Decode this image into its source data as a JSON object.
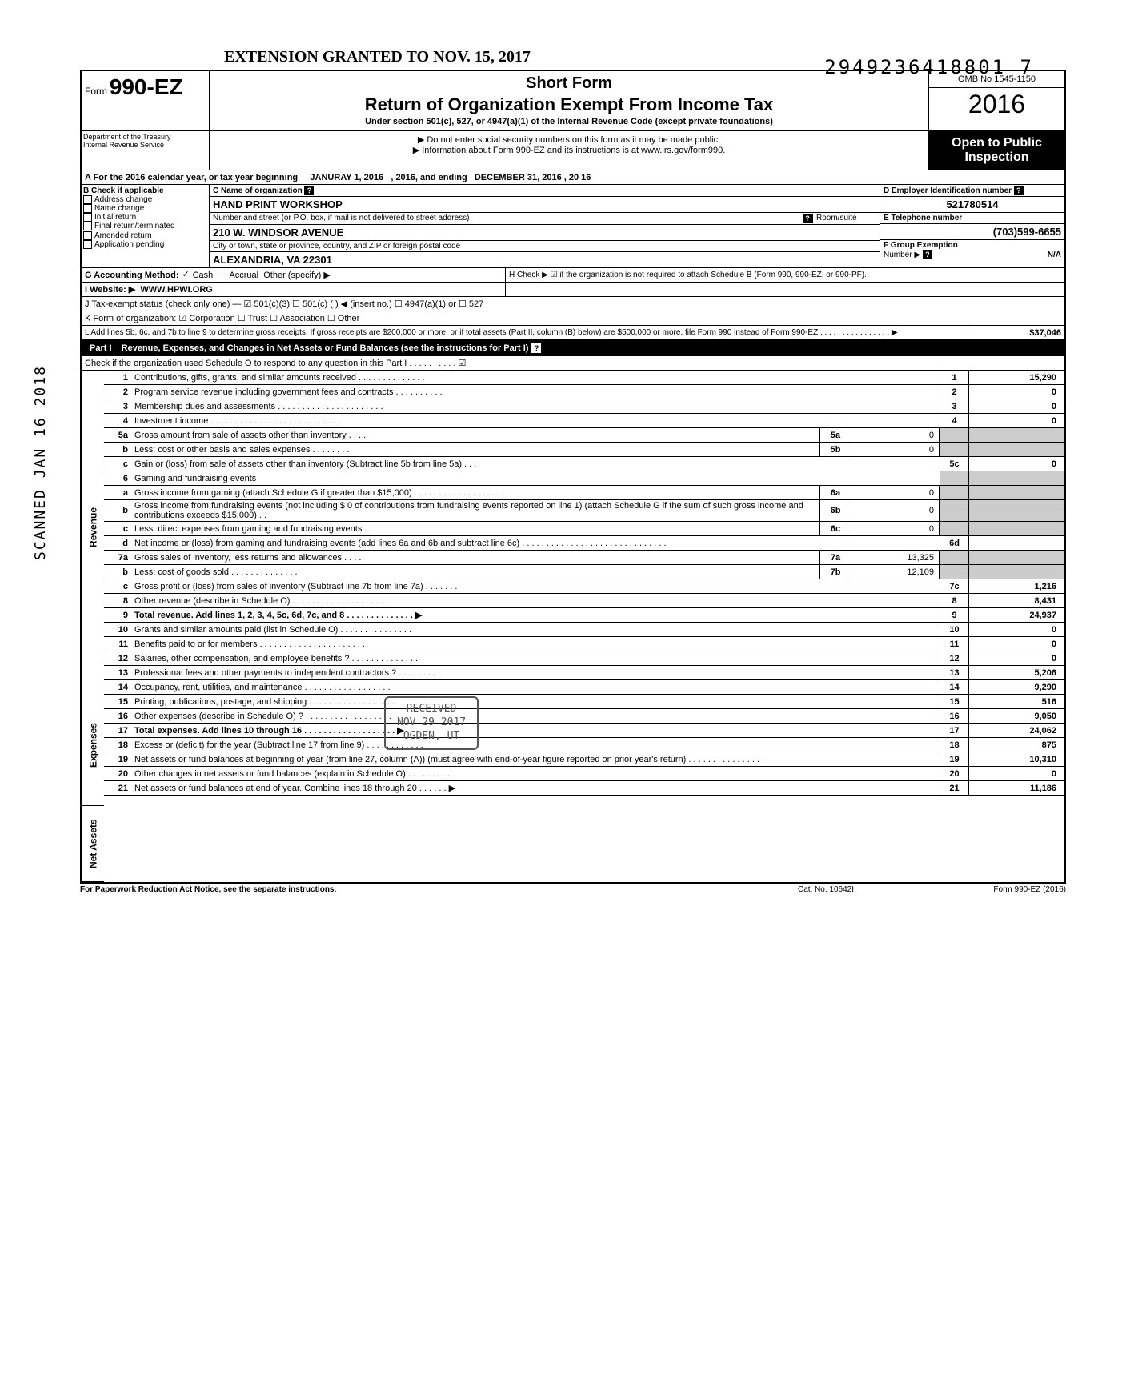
{
  "top_number": "2949236418801  7",
  "extension": "EXTENSION GRANTED TO NOV. 15, 2017",
  "header": {
    "form_prefix": "Form",
    "form_no": "990-EZ",
    "dept1": "Department of the Treasury",
    "dept2": "Internal Revenue Service",
    "short_form": "Short Form",
    "title": "Return of Organization Exempt From Income Tax",
    "subtitle": "Under section 501(c), 527, or 4947(a)(1) of the Internal Revenue Code (except private foundations)",
    "note1": "▶ Do not enter social security numbers on this form as it may be made public.",
    "note2": "▶ Information about Form 990-EZ and its instructions is at www.irs.gov/form990.",
    "omb": "OMB No 1545-1150",
    "year": "2016",
    "open": "Open to Public Inspection"
  },
  "period": {
    "label_a": "A  For the 2016 calendar year, or tax year beginning",
    "begin": "JANURAY 1, 2016",
    "mid": ", 2016, and ending",
    "end": "DECEMBER 31, 2016",
    "year_suffix": ", 20   16"
  },
  "section_b": {
    "title": "B  Check if applicable",
    "items": [
      "Address change",
      "Name change",
      "Initial return",
      "Final return/terminated",
      "Amended return",
      "Application pending"
    ]
  },
  "section_c": {
    "label": "C  Name of organization",
    "name": "HAND PRINT WORKSHOP",
    "street_label": "Number and street (or P.O. box, if mail is not delivered to street address)",
    "room_label": "Room/suite",
    "street": "210 W. WINDSOR AVENUE",
    "city_label": "City or town, state or province, country, and ZIP or foreign postal code",
    "city": "ALEXANDRIA, VA 22301"
  },
  "section_d": {
    "label": "D Employer Identification number",
    "ein": "521780514",
    "tel_label": "E  Telephone number",
    "tel": "(703)599-6655",
    "group_label": "F  Group Exemption",
    "group_label2": "Number  ▶",
    "group": "N/A"
  },
  "row_g": {
    "label": "G  Accounting Method:",
    "cash": "Cash",
    "accrual": "Accrual",
    "other": "Other (specify) ▶"
  },
  "row_h": "H  Check  ▶  ☑  if the organization is not required to attach Schedule B (Form 990, 990-EZ, or 990-PF).",
  "row_i": {
    "label": "I   Website: ▶",
    "value": "WWW.HPWI.ORG"
  },
  "row_j": "J  Tax-exempt status (check only one) —  ☑ 501(c)(3)   ☐ 501(c) (        ) ◀ (insert no.) ☐ 4947(a)(1) or   ☐ 527",
  "row_k": "K  Form of organization:   ☑ Corporation    ☐ Trust            ☐ Association       ☐ Other",
  "row_l": {
    "text": "L  Add lines 5b, 6c, and 7b to line 9 to determine gross receipts. If gross receipts are $200,000 or more, or if total assets (Part II, column (B) below) are $500,000 or more, file Form 990 instead of Form 990-EZ . . . . . . . . . . . . . . . . ▶",
    "amount": "37,046"
  },
  "part1": {
    "title": "Part I",
    "heading": "Revenue, Expenses, and Changes in Net Assets or Fund Balances (see the instructions for Part I)",
    "check_o": "Check if the organization used Schedule O to respond to any question in this Part I . . . . . . . . . . ☑"
  },
  "sections": {
    "revenue": "Revenue",
    "expenses": "Expenses",
    "netassets": "Net Assets"
  },
  "lines": [
    {
      "n": "1",
      "d": "Contributions, gifts, grants, and similar amounts received . . . . . . . . . . . . . .",
      "box": "1",
      "v": "15,290"
    },
    {
      "n": "2",
      "d": "Program service revenue including government fees and contracts  . . . . . . . . . .",
      "box": "2",
      "v": "0"
    },
    {
      "n": "3",
      "d": "Membership dues and assessments . . . . . . . . . . . . . . . . . . . . . .",
      "box": "3",
      "v": "0"
    },
    {
      "n": "4",
      "d": "Investment income  . . . . . . . . . . . . . . . . . . . . . . . . . . .",
      "box": "4",
      "v": "0"
    },
    {
      "n": "5a",
      "d": "Gross amount from sale of assets other than inventory  . . . .",
      "sb": "5a",
      "sv": "0"
    },
    {
      "n": "b",
      "d": "Less: cost or other basis and sales expenses . . . . . . . .",
      "sb": "5b",
      "sv": "0"
    },
    {
      "n": "c",
      "d": "Gain or (loss) from sale of assets other than inventory (Subtract line 5b from line 5a) . . .",
      "box": "5c",
      "v": "0"
    },
    {
      "n": "6",
      "d": "Gaming and fundraising events"
    },
    {
      "n": "a",
      "d": "Gross income from gaming (attach Schedule G if greater than $15,000) . . . . . . . . . . . . . . . . . . .",
      "sb": "6a",
      "sv": "0"
    },
    {
      "n": "b",
      "d": "Gross income from fundraising events (not including  $            0 of contributions from fundraising events reported on line 1) (attach Schedule G if the sum of such gross income and contributions exceeds $15,000)  . .",
      "sb": "6b",
      "sv": "0"
    },
    {
      "n": "c",
      "d": "Less: direct expenses from gaming and fundraising events  . .",
      "sb": "6c",
      "sv": "0"
    },
    {
      "n": "d",
      "d": "Net income or (loss) from gaming and fundraising events (add lines 6a and 6b and subtract line 6c)  . . . . . . . . . . . . . . . . . . . . . . . . . . . . . .",
      "box": "6d",
      "v": ""
    },
    {
      "n": "7a",
      "d": "Gross sales of inventory, less returns and allowances . . . .",
      "sb": "7a",
      "sv": "13,325"
    },
    {
      "n": "b",
      "d": "Less: cost of goods sold  . . . . . . . . . . . . . .",
      "sb": "7b",
      "sv": "12,109"
    },
    {
      "n": "c",
      "d": "Gross profit or (loss) from sales of inventory (Subtract line 7b from line 7a) . . . . . . .",
      "box": "7c",
      "v": "1,216"
    },
    {
      "n": "8",
      "d": "Other revenue (describe in Schedule O) . . . . . . . . . . . . . . . . . . . .",
      "box": "8",
      "v": "8,431"
    },
    {
      "n": "9",
      "d": "Total revenue. Add lines 1, 2, 3, 4, 5c, 6d, 7c, and 8  . . . . . . . . . . . . . . ▶",
      "box": "9",
      "v": "24,937",
      "bold": true
    },
    {
      "n": "10",
      "d": "Grants and similar amounts paid (list in Schedule O)  . . . . . . . . . . . . . . .",
      "box": "10",
      "v": "0"
    },
    {
      "n": "11",
      "d": "Benefits paid to or for members  . . . . . . . . . . . . . . . . . . . . . .",
      "box": "11",
      "v": "0"
    },
    {
      "n": "12",
      "d": "Salaries, other compensation, and employee benefits ? . . . . . . . . . . . . . .",
      "box": "12",
      "v": "0"
    },
    {
      "n": "13",
      "d": "Professional fees and other payments to independent contractors ? . . . . . . . . .",
      "box": "13",
      "v": "5,206"
    },
    {
      "n": "14",
      "d": "Occupancy, rent, utilities, and maintenance  . . . . . . . . . . . . . . . . . .",
      "box": "14",
      "v": "9,290"
    },
    {
      "n": "15",
      "d": "Printing, publications, postage, and shipping . . . . . . . . . . . . . . . . . .",
      "box": "15",
      "v": "516"
    },
    {
      "n": "16",
      "d": "Other expenses (describe in Schedule O) ? . . . . . . . . . . . . . . . . . .",
      "box": "16",
      "v": "9,050"
    },
    {
      "n": "17",
      "d": "Total expenses. Add lines 10 through 16 . . . . . . . . . . . . . . . . . . . ▶",
      "box": "17",
      "v": "24,062",
      "bold": true
    },
    {
      "n": "18",
      "d": "Excess or (deficit) for the year (Subtract line 17 from line 9)  . . . . . . . . . . . .",
      "box": "18",
      "v": "875"
    },
    {
      "n": "19",
      "d": "Net assets or fund balances at beginning of year (from line 27, column (A)) (must agree with end-of-year figure reported on prior year's return)  . . . . . . . . . . . . . . . .",
      "box": "19",
      "v": "10,310"
    },
    {
      "n": "20",
      "d": "Other changes in net assets or fund balances (explain in Schedule O) . . . . . . . . .",
      "box": "20",
      "v": "0"
    },
    {
      "n": "21",
      "d": "Net assets or fund balances at end of year. Combine lines 18 through 20  . . . . . . ▶",
      "box": "21",
      "v": "11,186"
    }
  ],
  "footer": {
    "left": "For Paperwork Reduction Act Notice, see the separate instructions.",
    "center": "Cat. No. 10642I",
    "right": "Form 990-EZ (2016)"
  },
  "stamps": {
    "scanned": "SCANNED  JAN 16 2018",
    "received_l1": "RECEIVED",
    "received_l2": "NOV 29 2017",
    "received_l3": "OGDEN, UT"
  }
}
